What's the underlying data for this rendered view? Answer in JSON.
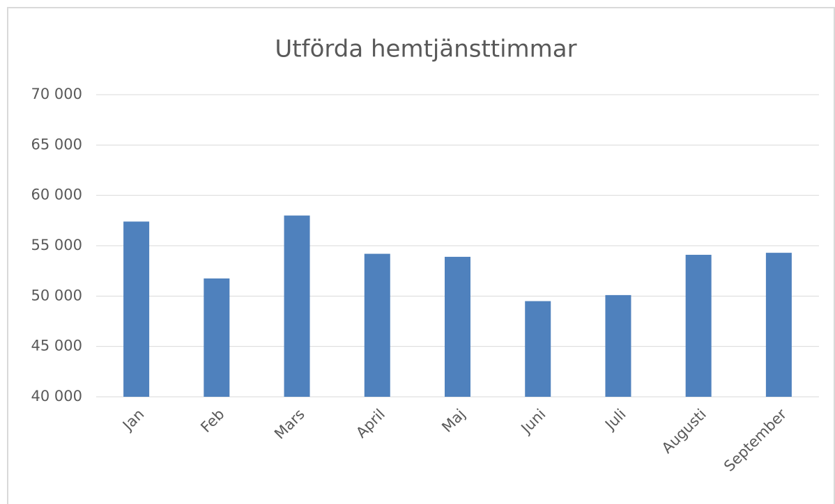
{
  "chart_data": {
    "type": "bar",
    "title": "Utförda hemtjänsttimmar",
    "categories": [
      "Jan",
      "Feb",
      "Mars",
      "April",
      "Maj",
      "Juni",
      "Juli",
      "Augusti",
      "September"
    ],
    "values": [
      57400,
      51750,
      58000,
      54200,
      53900,
      49500,
      50100,
      54100,
      54300
    ],
    "color": "#4f81bd",
    "ylim": [
      40000,
      70000
    ],
    "yticks": [
      {
        "value": 40000,
        "label": "40 000"
      },
      {
        "value": 45000,
        "label": "45 000"
      },
      {
        "value": 50000,
        "label": "50 000"
      },
      {
        "value": 55000,
        "label": "55 000"
      },
      {
        "value": 60000,
        "label": "60 000"
      },
      {
        "value": 65000,
        "label": "65 000"
      },
      {
        "value": 70000,
        "label": "70 000"
      }
    ],
    "grid": true
  }
}
